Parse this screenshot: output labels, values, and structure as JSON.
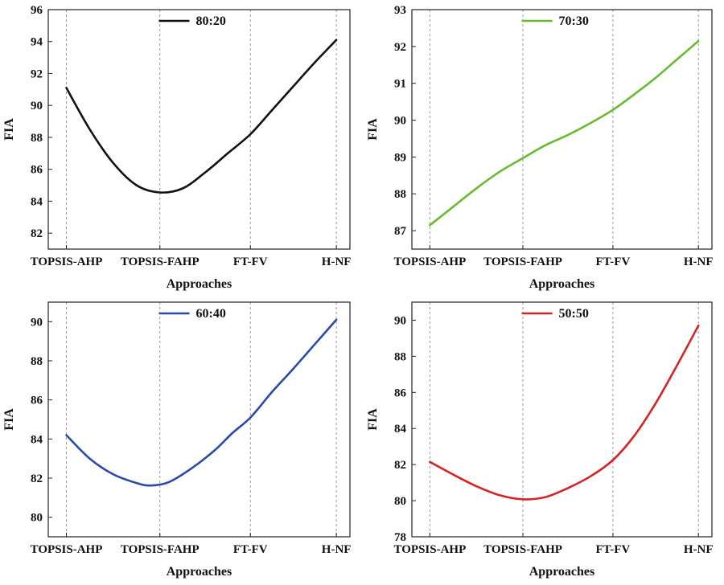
{
  "chart_data": [
    {
      "type": "line",
      "categories": [
        "TOPSIS-AHP",
        "TOPSIS-FAHP",
        "FT-FV",
        "H-NF"
      ],
      "series": [
        {
          "name": "80:20",
          "values": [
            91.1,
            84.5,
            88.2,
            94.1
          ],
          "color": "#111111"
        }
      ],
      "xlabel": "Approaches",
      "ylabel": "FIA",
      "ylim": [
        81,
        96
      ],
      "yticks": [
        82,
        84,
        86,
        88,
        90,
        92,
        94,
        96
      ],
      "curve": [
        [
          0,
          91.1
        ],
        [
          0.25,
          88.5
        ],
        [
          0.5,
          86.4
        ],
        [
          0.75,
          85.0
        ],
        [
          1,
          84.55
        ],
        [
          1.25,
          84.8
        ],
        [
          1.5,
          85.8
        ],
        [
          1.75,
          87.0
        ],
        [
          2,
          88.2
        ],
        [
          2.25,
          89.7
        ],
        [
          2.5,
          91.2
        ],
        [
          2.75,
          92.7
        ],
        [
          3,
          94.1
        ]
      ],
      "grid": "vertical-dashed",
      "legend_position": "top-center"
    },
    {
      "type": "line",
      "categories": [
        "TOPSIS-AHP",
        "TOPSIS-FAHP",
        "FT-FV",
        "H-NF"
      ],
      "series": [
        {
          "name": "70:30",
          "values": [
            87.1,
            89.0,
            90.3,
            92.1
          ],
          "color": "#66bb33"
        }
      ],
      "xlabel": "Approaches",
      "ylabel": "FIA",
      "ylim": [
        86.5,
        93
      ],
      "yticks": [
        87,
        88,
        89,
        90,
        91,
        92,
        93
      ],
      "curve": [
        [
          0,
          87.15
        ],
        [
          0.25,
          87.65
        ],
        [
          0.5,
          88.15
        ],
        [
          0.75,
          88.6
        ],
        [
          1,
          88.97
        ],
        [
          1.25,
          89.32
        ],
        [
          1.5,
          89.6
        ],
        [
          1.75,
          89.92
        ],
        [
          2,
          90.28
        ],
        [
          2.25,
          90.7
        ],
        [
          2.5,
          91.15
        ],
        [
          2.75,
          91.65
        ],
        [
          3,
          92.15
        ]
      ],
      "grid": "vertical-dashed",
      "legend_position": "top-center"
    },
    {
      "type": "line",
      "categories": [
        "TOPSIS-AHP",
        "TOPSIS-FAHP",
        "FT-FV",
        "H-NF"
      ],
      "series": [
        {
          "name": "60:40",
          "values": [
            84.2,
            81.6,
            85.1,
            90.1
          ],
          "color": "#2a4aa8"
        }
      ],
      "xlabel": "Approaches",
      "ylabel": "FIA",
      "ylim": [
        79,
        91
      ],
      "yticks": [
        80,
        82,
        84,
        86,
        88,
        90
      ],
      "curve": [
        [
          0,
          84.2
        ],
        [
          0.25,
          83.0
        ],
        [
          0.5,
          82.2
        ],
        [
          0.75,
          81.75
        ],
        [
          0.9,
          81.62
        ],
        [
          1.1,
          81.8
        ],
        [
          1.35,
          82.5
        ],
        [
          1.6,
          83.4
        ],
        [
          1.8,
          84.3
        ],
        [
          2,
          85.1
        ],
        [
          2.25,
          86.4
        ],
        [
          2.5,
          87.6
        ],
        [
          2.75,
          88.85
        ],
        [
          3,
          90.1
        ]
      ],
      "grid": "vertical-dashed",
      "legend_position": "top-center"
    },
    {
      "type": "line",
      "categories": [
        "TOPSIS-AHP",
        "TOPSIS-FAHP",
        "FT-FV",
        "H-NF"
      ],
      "series": [
        {
          "name": "50:50",
          "values": [
            82.1,
            80.1,
            82.3,
            89.7
          ],
          "color": "#d42424"
        }
      ],
      "xlabel": "Approaches",
      "ylabel": "FIA",
      "ylim": [
        78,
        91
      ],
      "yticks": [
        78,
        80,
        82,
        84,
        86,
        88,
        90
      ],
      "curve": [
        [
          0,
          82.15
        ],
        [
          0.25,
          81.45
        ],
        [
          0.5,
          80.8
        ],
        [
          0.75,
          80.3
        ],
        [
          1,
          80.08
        ],
        [
          1.25,
          80.2
        ],
        [
          1.5,
          80.7
        ],
        [
          1.75,
          81.35
        ],
        [
          2,
          82.25
        ],
        [
          2.25,
          83.6
        ],
        [
          2.5,
          85.4
        ],
        [
          2.75,
          87.5
        ],
        [
          3,
          89.7
        ]
      ],
      "grid": "vertical-dashed",
      "legend_position": "top-center"
    }
  ]
}
